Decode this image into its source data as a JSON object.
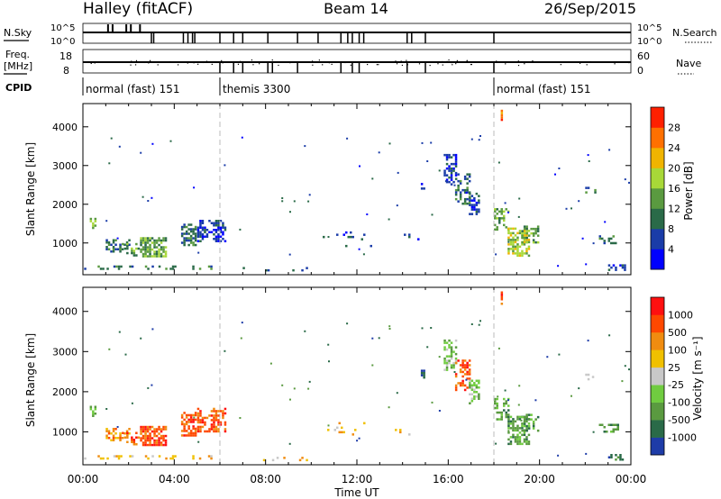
{
  "header": {
    "station": "Halley (fitACF)",
    "beam": "Beam 14",
    "date": "26/Sep/2015"
  },
  "chart_data": {
    "type": "heatmap",
    "time_axis": {
      "label": "Time UT",
      "ticks": [
        "00:00",
        "04:00",
        "08:00",
        "12:00",
        "16:00",
        "20:00",
        "00:00"
      ],
      "range_hours": [
        0,
        24
      ]
    },
    "range_axis": {
      "label": "Slant Range [km]",
      "ticks": [
        1000,
        2000,
        3000,
        4000
      ],
      "range_km": [
        180,
        4600
      ]
    },
    "mode_changes_hours": [
      6,
      18
    ],
    "summary_panels": {
      "nsky": {
        "left_label": "N.Sky",
        "left_ticks": [
          "10^5",
          "10^0"
        ],
        "right_label": "N.Search",
        "right_ticks": [
          "10^5",
          "10^0"
        ]
      },
      "freq": {
        "left_label_1": "Freq.",
        "left_label_2": "[MHz]",
        "left_ticks": [
          "18",
          "8"
        ],
        "right_label": "Nave",
        "right_ticks": [
          "60",
          "0"
        ]
      },
      "cpid": {
        "label": "CPID",
        "segments": [
          {
            "start_hour": 0,
            "name": "normal (fast) 151"
          },
          {
            "start_hour": 6,
            "name": "themis 3300"
          },
          {
            "start_hour": 18,
            "name": "normal (fast) 151"
          }
        ]
      }
    },
    "power": {
      "label": "Power [dB]",
      "ticks": [
        "28",
        "24",
        "20",
        "16",
        "12",
        "8",
        "4"
      ],
      "colors": [
        "#0000ff",
        "#1a3ca8",
        "#2a6a48",
        "#5a9a40",
        "#a8d838",
        "#f0b400",
        "#ff7000",
        "#ff2000"
      ]
    },
    "velocity": {
      "label": "Velocity  [m s⁻¹]",
      "ticks": [
        "1000",
        "500",
        "100",
        "25",
        "-25",
        "-100",
        "-500",
        "-1000"
      ],
      "colors": [
        "#1e3ca8",
        "#2a6a48",
        "#5a9a40",
        "#70cc40",
        "#c8c8c8",
        "#f0c000",
        "#f08c10",
        "#ff4800",
        "#ff1010"
      ]
    },
    "echo_regions": [
      {
        "t0": 0.05,
        "t1": 5.9,
        "r0": 300,
        "r1": 420,
        "pv": 2,
        "vv": 5,
        "d": 0.25
      },
      {
        "t0": 0.3,
        "t1": 0.55,
        "r0": 1350,
        "r1": 1650,
        "pv": 3,
        "vv": 2,
        "d": 0.6
      },
      {
        "t0": 0.9,
        "t1": 2.1,
        "r0": 750,
        "r1": 1100,
        "pv": 2,
        "vv": 6,
        "d": 0.35
      },
      {
        "t0": 1.7,
        "t1": 2.5,
        "r0": 650,
        "r1": 1000,
        "pv": 3,
        "vv": 7,
        "d": 0.4
      },
      {
        "t0": 2.5,
        "t1": 3.7,
        "r0": 650,
        "r1": 1150,
        "pv": 3,
        "vv": 7,
        "d": 0.6
      },
      {
        "t0": 4.3,
        "t1": 5.0,
        "r0": 900,
        "r1": 1500,
        "pv": 2,
        "vv": 7,
        "d": 0.55
      },
      {
        "t0": 5.0,
        "t1": 6.3,
        "r0": 1000,
        "r1": 1600,
        "pv": 1,
        "vv": 7,
        "d": 0.6
      },
      {
        "t0": 7.0,
        "t1": 10.0,
        "r0": 250,
        "r1": 380,
        "pv": 2,
        "vv": 5,
        "d": 0.15
      },
      {
        "t0": 10.5,
        "t1": 15.0,
        "r0": 850,
        "r1": 1300,
        "pv": 1,
        "vv": 5,
        "d": 0.03
      },
      {
        "t0": 14.8,
        "t1": 15.0,
        "r0": 2350,
        "r1": 2550,
        "pv": 1,
        "vv": 1,
        "d": 0.7
      },
      {
        "t0": 15.8,
        "t1": 16.4,
        "r0": 2500,
        "r1": 3300,
        "pv": 1,
        "vv": 3,
        "d": 0.4
      },
      {
        "t0": 16.3,
        "t1": 17.0,
        "r0": 2000,
        "r1": 2800,
        "pv": 2,
        "vv": 7,
        "d": 0.45
      },
      {
        "t0": 16.9,
        "t1": 17.4,
        "r0": 1700,
        "r1": 2300,
        "pv": 1,
        "vv": 3,
        "d": 0.5
      },
      {
        "t0": 18.0,
        "t1": 18.7,
        "r0": 1300,
        "r1": 1900,
        "pv": 3,
        "vv": 2,
        "d": 0.4
      },
      {
        "t0": 18.6,
        "t1": 19.6,
        "r0": 650,
        "r1": 1400,
        "pv": 4,
        "vv": 2,
        "d": 0.55
      },
      {
        "t0": 19.2,
        "t1": 20.0,
        "r0": 1000,
        "r1": 1450,
        "pv": 3,
        "vv": 2,
        "d": 0.35
      },
      {
        "t0": 22.0,
        "t1": 22.5,
        "r0": 2300,
        "r1": 2450,
        "pv": 2,
        "vv": 4,
        "d": 0.4
      },
      {
        "t0": 22.6,
        "t1": 23.5,
        "r0": 950,
        "r1": 1200,
        "pv": 2,
        "vv": 2,
        "d": 0.45
      },
      {
        "t0": 23.0,
        "t1": 23.8,
        "r0": 300,
        "r1": 450,
        "pv": 1,
        "vv": 1,
        "d": 0.5
      },
      {
        "t0": 18.3,
        "t1": 18.4,
        "r0": 4150,
        "r1": 4500,
        "pv": 6,
        "vv": 7,
        "d": 0.8
      }
    ]
  }
}
